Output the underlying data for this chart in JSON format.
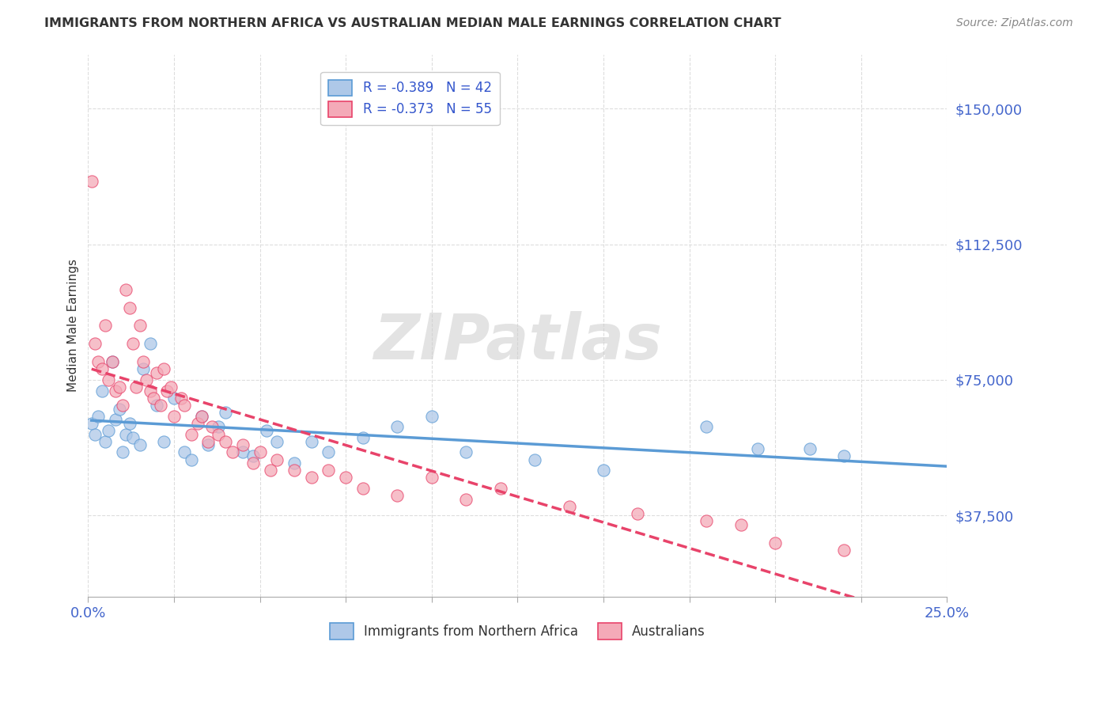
{
  "title": "IMMIGRANTS FROM NORTHERN AFRICA VS AUSTRALIAN MEDIAN MALE EARNINGS CORRELATION CHART",
  "source": "Source: ZipAtlas.com",
  "ylabel": "Median Male Earnings",
  "xlim": [
    0.0,
    0.25
  ],
  "ylim": [
    15000,
    165000
  ],
  "yticks": [
    37500,
    75000,
    112500,
    150000
  ],
  "ytick_labels": [
    "$37,500",
    "$75,000",
    "$112,500",
    "$150,000"
  ],
  "xtick_positions": [
    0.0,
    0.025,
    0.05,
    0.075,
    0.1,
    0.125,
    0.15,
    0.175,
    0.2,
    0.225,
    0.25
  ],
  "series1_label": "Immigrants from Northern Africa",
  "series1_color": "#aec8e8",
  "series1_R": "-0.389",
  "series1_N": "42",
  "series2_label": "Australians",
  "series2_color": "#f4aab8",
  "series2_R": "-0.373",
  "series2_N": "55",
  "trend1_color": "#5b9bd5",
  "trend2_color": "#e8436a",
  "trend2_dash": true,
  "watermark_text": "ZIPatlas",
  "background_color": "#ffffff",
  "grid_color": "#dddddd",
  "axis_tick_color": "#888888",
  "axis_label_color": "#4466cc",
  "title_color": "#333333",
  "source_color": "#888888",
  "legend_text_color": "#3355cc",
  "scatter1_x": [
    0.001,
    0.002,
    0.003,
    0.004,
    0.005,
    0.006,
    0.007,
    0.008,
    0.009,
    0.01,
    0.011,
    0.012,
    0.013,
    0.015,
    0.016,
    0.018,
    0.02,
    0.022,
    0.025,
    0.028,
    0.03,
    0.033,
    0.035,
    0.038,
    0.04,
    0.045,
    0.048,
    0.052,
    0.055,
    0.06,
    0.065,
    0.07,
    0.08,
    0.09,
    0.1,
    0.11,
    0.13,
    0.15,
    0.18,
    0.195,
    0.21,
    0.22
  ],
  "scatter1_y": [
    63000,
    60000,
    65000,
    72000,
    58000,
    61000,
    80000,
    64000,
    67000,
    55000,
    60000,
    63000,
    59000,
    57000,
    78000,
    85000,
    68000,
    58000,
    70000,
    55000,
    53000,
    65000,
    57000,
    62000,
    66000,
    55000,
    54000,
    61000,
    58000,
    52000,
    58000,
    55000,
    59000,
    62000,
    65000,
    55000,
    53000,
    50000,
    62000,
    56000,
    56000,
    54000
  ],
  "scatter2_x": [
    0.001,
    0.002,
    0.003,
    0.004,
    0.005,
    0.006,
    0.007,
    0.008,
    0.009,
    0.01,
    0.011,
    0.012,
    0.013,
    0.014,
    0.015,
    0.016,
    0.017,
    0.018,
    0.019,
    0.02,
    0.021,
    0.022,
    0.023,
    0.024,
    0.025,
    0.027,
    0.028,
    0.03,
    0.032,
    0.033,
    0.035,
    0.036,
    0.038,
    0.04,
    0.042,
    0.045,
    0.048,
    0.05,
    0.053,
    0.055,
    0.06,
    0.065,
    0.07,
    0.075,
    0.08,
    0.09,
    0.1,
    0.11,
    0.12,
    0.14,
    0.16,
    0.18,
    0.19,
    0.2,
    0.22
  ],
  "scatter2_y": [
    130000,
    85000,
    80000,
    78000,
    90000,
    75000,
    80000,
    72000,
    73000,
    68000,
    100000,
    95000,
    85000,
    73000,
    90000,
    80000,
    75000,
    72000,
    70000,
    77000,
    68000,
    78000,
    72000,
    73000,
    65000,
    70000,
    68000,
    60000,
    63000,
    65000,
    58000,
    62000,
    60000,
    58000,
    55000,
    57000,
    52000,
    55000,
    50000,
    53000,
    50000,
    48000,
    50000,
    48000,
    45000,
    43000,
    48000,
    42000,
    45000,
    40000,
    38000,
    36000,
    35000,
    30000,
    28000
  ]
}
